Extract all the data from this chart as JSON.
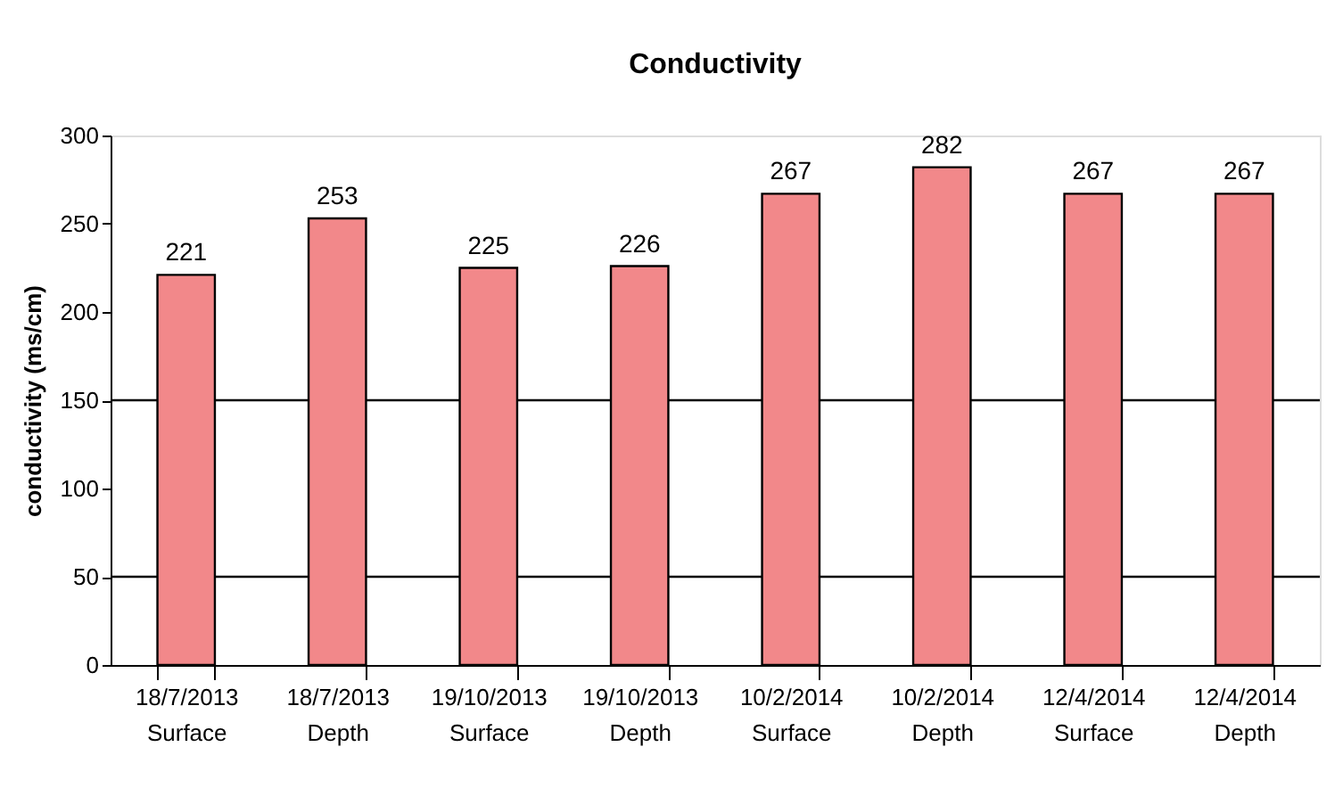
{
  "chart_data": {
    "type": "bar",
    "title": "Conductivity",
    "ylabel": "conductivity (ms/cm)",
    "categories": [
      "18/7/2013\nSurface",
      "18/7/2013\nDepth",
      "19/10/2013\nSurface",
      "19/10/2013\nDepth",
      "10/2/2014\nSurface",
      "10/2/2014\nDepth",
      "12/4/2014\nSurface",
      "12/4/2014\nDepth"
    ],
    "values": [
      221,
      253,
      225,
      226,
      267,
      282,
      267,
      267
    ],
    "color": "#f2888a",
    "ylim": [
      0,
      300
    ],
    "yticks": [
      0,
      50,
      100,
      150,
      200,
      250,
      300
    ],
    "grid": false,
    "data_labels": true,
    "ref_lines": [
      {
        "axis": "y",
        "value": 50,
        "color": "#000000"
      },
      {
        "axis": "y",
        "value": 150,
        "color": "#000000"
      }
    ]
  }
}
